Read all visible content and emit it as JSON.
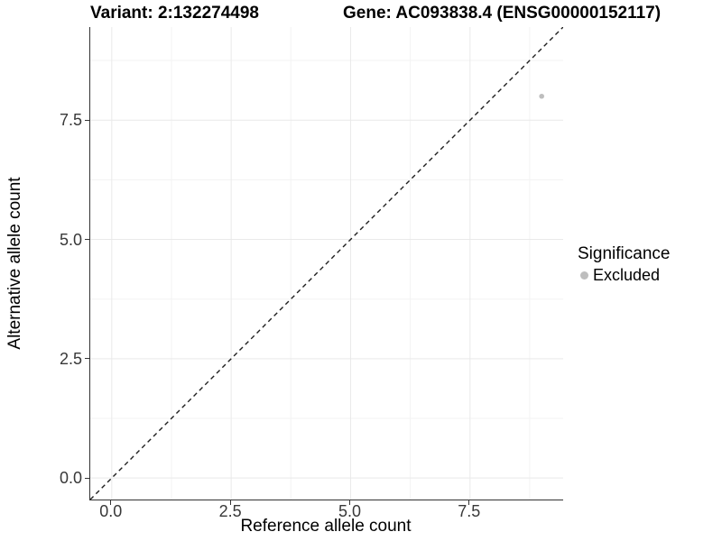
{
  "chart_data": {
    "type": "scatter",
    "title_left": "Variant: 2:132274498",
    "title_right": "Gene: AC093838.4 (ENSG00000152117)",
    "xlabel": "Reference allele count",
    "ylabel": "Alternative allele count",
    "xlim": [
      -0.45,
      9.45
    ],
    "ylim": [
      -0.45,
      9.45
    ],
    "ticks": {
      "values": [
        0,
        2.5,
        5,
        7.5
      ],
      "labels": [
        "0.0",
        "2.5",
        "5.0",
        "7.5"
      ]
    },
    "minor_gridlines": [
      1.25,
      3.75,
      6.25,
      8.75
    ],
    "grid": "major and minor gridlines on white background",
    "series": [
      {
        "name": "Excluded",
        "color": "#bebebe",
        "points": [
          {
            "x": 9,
            "y": 8
          }
        ]
      }
    ],
    "reference_line": {
      "type": "identity y=x",
      "style": "dashed",
      "slope": 1,
      "intercept": 0
    },
    "legend": {
      "title": "Significance",
      "position": "right",
      "items": [
        {
          "label": "Excluded",
          "color": "#bebebe"
        }
      ]
    },
    "colors": {
      "background": "#ffffff",
      "grid_major": "#e9e9e9",
      "grid_minor": "#f3f3f3",
      "axis_line": "#333333",
      "tick_text": "#383838",
      "dashed_line": "#1f1f1f",
      "point": "#bebebe"
    }
  }
}
